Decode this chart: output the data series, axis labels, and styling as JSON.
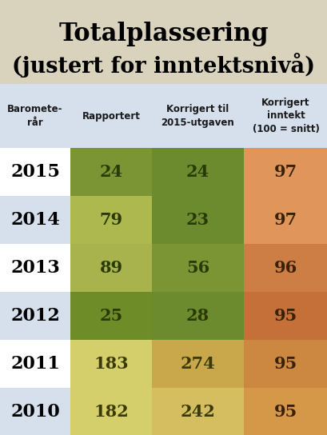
{
  "title_line1": "Totalplassering",
  "title_line2": "(justert for inntektsnivå)",
  "title_bg": "#d9d3be",
  "header_bg": "#d5e0ec",
  "col_headers": [
    "Baromete-\nrår",
    "Rapportert",
    "Korrigert til\n2015-utgaven",
    "Korrigert\ninntekt\n(100 = snitt)"
  ],
  "years": [
    "2015",
    "2014",
    "2013",
    "2012",
    "2011",
    "2010"
  ],
  "rapportert": [
    24,
    79,
    89,
    25,
    183,
    182
  ],
  "korrigert_2015": [
    24,
    23,
    56,
    28,
    274,
    242
  ],
  "korrigert_inntekt": [
    97,
    97,
    96,
    95,
    95,
    95
  ],
  "row_bg_white": "#ffffff",
  "row_bg_blue": "#d5e0ec",
  "cell_colors_rapportert": [
    "#7b9535",
    "#adb84e",
    "#a8b34e",
    "#6e8c28",
    "#d4cf6a",
    "#d4cf6a"
  ],
  "cell_colors_korrigert_2015": [
    "#6c8b2e",
    "#6c8b2e",
    "#7b9535",
    "#6c8b2e",
    "#c9a84c",
    "#d4be60"
  ],
  "cell_colors_korrigert_inntekt": [
    "#e0965a",
    "#e0965a",
    "#cc7e45",
    "#c47038",
    "#cc8840",
    "#d49848"
  ],
  "text_color_green": "#2a3a05",
  "text_color_orange": "#3a2005",
  "text_color_yellow_green": "#3a3a05"
}
